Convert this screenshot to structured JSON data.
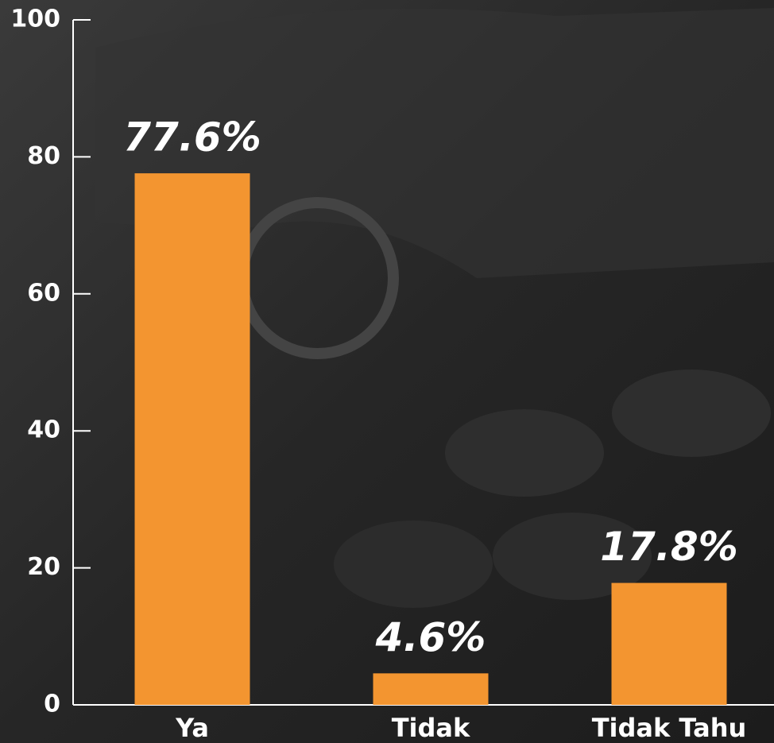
{
  "chart_data": {
    "type": "bar",
    "categories": [
      "Ya",
      "Tidak",
      "Tidak Tahu"
    ],
    "values": [
      77.6,
      4.6,
      17.8
    ],
    "value_labels": [
      "77.6%",
      "4.6%",
      "17.8%"
    ],
    "color": "#f39530",
    "ylim": [
      0,
      100
    ],
    "yticks": [
      0,
      20,
      40,
      60,
      80,
      100
    ]
  }
}
